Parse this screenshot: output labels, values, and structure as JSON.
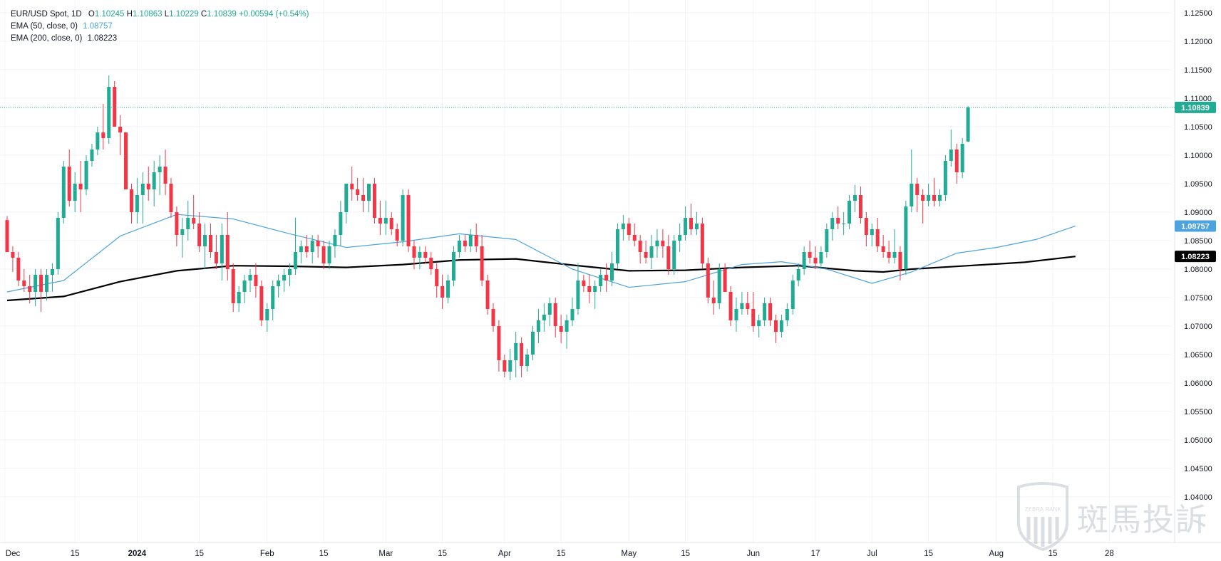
{
  "legend": {
    "symbol": "EUR/USD Spot, 1D",
    "o_label": "O",
    "o_val": "1.10245",
    "h_label": "H",
    "h_val": "1.10863",
    "l_label": "L",
    "l_val": "1.10229",
    "c_label": "C",
    "c_val": "1.10839",
    "change": "+0.00594 (+0.54%)",
    "ema50_label": "EMA (50, close, 0)",
    "ema50_val": "1.08757",
    "ema200_label": "EMA (200, close, 0)",
    "ema200_val": "1.08223"
  },
  "colors": {
    "up": "#22ab94",
    "down": "#f23645",
    "ema50": "#4ca3dd",
    "ema200": "#000000",
    "grid": "#f0f3fa",
    "axis_text": "#131722",
    "last_price_line": "#22ab94"
  },
  "watermark": {
    "brand": "ZEBRA RANK",
    "text": "斑馬投訴"
  },
  "chart_data": {
    "type": "candlestick",
    "title": "EUR/USD Spot, 1D",
    "ylim": [
      1.0365,
      1.1285
    ],
    "yticks": [
      "1.04000",
      "1.04500",
      "1.05000",
      "1.05500",
      "1.06000",
      "1.06500",
      "1.07000",
      "1.07500",
      "1.08000",
      "1.08500",
      "1.09000",
      "1.09500",
      "1.10000",
      "1.10500",
      "1.11000",
      "1.11500",
      "1.12000",
      "1.12500"
    ],
    "xlabels": [
      {
        "label": "Dec",
        "idx": -0.4
      },
      {
        "label": "15",
        "idx": 12
      },
      {
        "label": "2024",
        "idx": 23
      },
      {
        "label": "15",
        "idx": 34
      },
      {
        "label": "Feb",
        "idx": 46
      },
      {
        "label": "15",
        "idx": 56
      },
      {
        "label": "Mar",
        "idx": 67
      },
      {
        "label": "15",
        "idx": 77
      },
      {
        "label": "Apr",
        "idx": 88
      },
      {
        "label": "15",
        "idx": 98
      },
      {
        "label": "May",
        "idx": 110
      },
      {
        "label": "15",
        "idx": 120
      },
      {
        "label": "Jun",
        "idx": 132
      },
      {
        "label": "17",
        "idx": 143
      },
      {
        "label": "Jul",
        "idx": 153
      },
      {
        "label": "15",
        "idx": 163
      },
      {
        "label": "Aug",
        "idx": 175
      },
      {
        "label": "15",
        "idx": 185
      },
      {
        "label": "28",
        "idx": 195
      }
    ],
    "last_price": 1.10839,
    "ema50_last": 1.08757,
    "ema200_last": 1.08223,
    "ema50_points": [
      [
        0,
        1.076
      ],
      [
        10,
        1.078
      ],
      [
        20,
        1.0858
      ],
      [
        30,
        1.0896
      ],
      [
        40,
        1.0888
      ],
      [
        50,
        1.0862
      ],
      [
        60,
        1.0838
      ],
      [
        70,
        1.0848
      ],
      [
        80,
        1.0862
      ],
      [
        90,
        1.0852
      ],
      [
        100,
        1.08
      ],
      [
        110,
        1.0768
      ],
      [
        120,
        1.0778
      ],
      [
        130,
        1.0808
      ],
      [
        137,
        1.0813
      ],
      [
        145,
        1.08
      ],
      [
        153,
        1.0775
      ],
      [
        160,
        1.0795
      ],
      [
        168,
        1.0828
      ],
      [
        175,
        1.0838
      ],
      [
        182,
        1.0852
      ],
      [
        189,
        1.08757
      ]
    ],
    "ema200_points": [
      [
        0,
        1.0745
      ],
      [
        10,
        1.0752
      ],
      [
        20,
        1.0778
      ],
      [
        30,
        1.0797
      ],
      [
        40,
        1.0806
      ],
      [
        50,
        1.0805
      ],
      [
        60,
        1.0803
      ],
      [
        70,
        1.0808
      ],
      [
        80,
        1.0816
      ],
      [
        90,
        1.0818
      ],
      [
        100,
        1.0807
      ],
      [
        110,
        1.0797
      ],
      [
        120,
        1.0798
      ],
      [
        130,
        1.0803
      ],
      [
        140,
        1.0806
      ],
      [
        150,
        1.0797
      ],
      [
        155,
        1.0795
      ],
      [
        160,
        1.08
      ],
      [
        170,
        1.0806
      ],
      [
        180,
        1.0812
      ],
      [
        189,
        1.08223
      ]
    ],
    "candles": [
      [
        1.0886,
        1.0893,
        1.083,
        1.083
      ],
      [
        1.083,
        1.084,
        1.0795,
        1.082
      ],
      [
        1.082,
        1.083,
        1.077,
        1.078
      ],
      [
        1.078,
        1.08,
        1.076,
        1.077
      ],
      [
        1.077,
        1.079,
        1.074,
        1.076
      ],
      [
        1.076,
        1.08,
        1.0735,
        1.079
      ],
      [
        1.079,
        1.08,
        1.0725,
        1.076
      ],
      [
        1.076,
        1.08,
        1.0745,
        1.079
      ],
      [
        1.079,
        1.081,
        1.076,
        1.08
      ],
      [
        1.08,
        1.09,
        1.079,
        1.089
      ],
      [
        1.089,
        1.099,
        1.088,
        1.098
      ],
      [
        1.098,
        1.101,
        1.091,
        1.092
      ],
      [
        1.092,
        1.097,
        1.09,
        1.095
      ],
      [
        1.095,
        1.099,
        1.09,
        1.094
      ],
      [
        1.094,
        1.1,
        1.093,
        1.099
      ],
      [
        1.099,
        1.102,
        1.098,
        1.101
      ],
      [
        1.101,
        1.105,
        1.1,
        1.104
      ],
      [
        1.104,
        1.109,
        1.101,
        1.103
      ],
      [
        1.103,
        1.114,
        1.102,
        1.112
      ],
      [
        1.112,
        1.113,
        1.105,
        1.105
      ],
      [
        1.105,
        1.107,
        1.1,
        1.104
      ],
      [
        1.104,
        1.104,
        1.094,
        1.094
      ],
      [
        1.094,
        1.095,
        1.088,
        1.09
      ],
      [
        1.09,
        1.096,
        1.088,
        1.093
      ],
      [
        1.093,
        1.097,
        1.088,
        1.095
      ],
      [
        1.095,
        1.098,
        1.092,
        1.094
      ],
      [
        1.094,
        1.099,
        1.091,
        1.097
      ],
      [
        1.097,
        1.1,
        1.093,
        1.098
      ],
      [
        1.098,
        1.101,
        1.093,
        1.095
      ],
      [
        1.095,
        1.096,
        1.089,
        1.09
      ],
      [
        1.09,
        1.091,
        1.084,
        1.086
      ],
      [
        1.086,
        1.089,
        1.082,
        1.087
      ],
      [
        1.087,
        1.092,
        1.085,
        1.089
      ],
      [
        1.089,
        1.093,
        1.087,
        1.088
      ],
      [
        1.088,
        1.09,
        1.083,
        1.084
      ],
      [
        1.084,
        1.088,
        1.08,
        1.086
      ],
      [
        1.086,
        1.088,
        1.082,
        1.083
      ],
      [
        1.083,
        1.086,
        1.08,
        1.081
      ],
      [
        1.081,
        1.088,
        1.078,
        1.086
      ],
      [
        1.086,
        1.09,
        1.078,
        1.08
      ],
      [
        1.08,
        1.081,
        1.0725,
        1.074
      ],
      [
        1.074,
        1.077,
        1.0725,
        1.076
      ],
      [
        1.076,
        1.079,
        1.074,
        1.078
      ],
      [
        1.078,
        1.08,
        1.076,
        1.079
      ],
      [
        1.079,
        1.081,
        1.075,
        1.077
      ],
      [
        1.077,
        1.078,
        1.07,
        1.071
      ],
      [
        1.071,
        1.074,
        1.069,
        1.073
      ],
      [
        1.073,
        1.078,
        1.071,
        1.077
      ],
      [
        1.077,
        1.079,
        1.075,
        1.078
      ],
      [
        1.078,
        1.08,
        1.076,
        1.079
      ],
      [
        1.079,
        1.081,
        1.077,
        1.08
      ],
      [
        1.08,
        1.089,
        1.079,
        1.083
      ],
      [
        1.083,
        1.085,
        1.081,
        1.084
      ],
      [
        1.084,
        1.086,
        1.082,
        1.083
      ],
      [
        1.083,
        1.086,
        1.081,
        1.085
      ],
      [
        1.085,
        1.086,
        1.082,
        1.084
      ],
      [
        1.084,
        1.085,
        1.08,
        1.081
      ],
      [
        1.081,
        1.085,
        1.08,
        1.084
      ],
      [
        1.084,
        1.087,
        1.082,
        1.086
      ],
      [
        1.086,
        1.092,
        1.084,
        1.09
      ],
      [
        1.09,
        1.095,
        1.088,
        1.095
      ],
      [
        1.095,
        1.098,
        1.092,
        1.094
      ],
      [
        1.094,
        1.096,
        1.092,
        1.093
      ],
      [
        1.093,
        1.096,
        1.09,
        1.092
      ],
      [
        1.092,
        1.095,
        1.09,
        1.095
      ],
      [
        1.095,
        1.096,
        1.088,
        1.089
      ],
      [
        1.089,
        1.092,
        1.086,
        1.088
      ],
      [
        1.088,
        1.092,
        1.086,
        1.089
      ],
      [
        1.089,
        1.09,
        1.086,
        1.087
      ],
      [
        1.087,
        1.088,
        1.084,
        1.085
      ],
      [
        1.085,
        1.094,
        1.084,
        1.093
      ],
      [
        1.093,
        1.094,
        1.083,
        1.084
      ],
      [
        1.084,
        1.085,
        1.08,
        1.082
      ],
      [
        1.082,
        1.084,
        1.08,
        1.083
      ],
      [
        1.083,
        1.084,
        1.081,
        1.082
      ],
      [
        1.082,
        1.083,
        1.079,
        1.08
      ],
      [
        1.08,
        1.081,
        1.075,
        1.077
      ],
      [
        1.077,
        1.079,
        1.073,
        1.075
      ],
      [
        1.075,
        1.079,
        1.074,
        1.078
      ],
      [
        1.078,
        1.084,
        1.077,
        1.083
      ],
      [
        1.083,
        1.086,
        1.082,
        1.085
      ],
      [
        1.085,
        1.086,
        1.083,
        1.084
      ],
      [
        1.084,
        1.087,
        1.083,
        1.086
      ],
      [
        1.086,
        1.088,
        1.083,
        1.084
      ],
      [
        1.084,
        1.086,
        1.077,
        1.078
      ],
      [
        1.078,
        1.079,
        1.072,
        1.073
      ],
      [
        1.073,
        1.074,
        1.069,
        1.07
      ],
      [
        1.07,
        1.071,
        1.062,
        1.064
      ],
      [
        1.064,
        1.065,
        1.061,
        1.062
      ],
      [
        1.062,
        1.066,
        1.0605,
        1.064
      ],
      [
        1.064,
        1.069,
        1.061,
        1.067
      ],
      [
        1.067,
        1.068,
        1.061,
        1.063
      ],
      [
        1.063,
        1.066,
        1.062,
        1.065
      ],
      [
        1.065,
        1.07,
        1.064,
        1.069
      ],
      [
        1.069,
        1.073,
        1.067,
        1.071
      ],
      [
        1.071,
        1.074,
        1.069,
        1.072
      ],
      [
        1.072,
        1.075,
        1.07,
        1.074
      ],
      [
        1.074,
        1.075,
        1.068,
        1.07
      ],
      [
        1.07,
        1.072,
        1.067,
        1.069
      ],
      [
        1.069,
        1.072,
        1.066,
        1.071
      ],
      [
        1.071,
        1.075,
        1.07,
        1.073
      ],
      [
        1.073,
        1.081,
        1.072,
        1.078
      ],
      [
        1.078,
        1.079,
        1.076,
        1.077
      ],
      [
        1.077,
        1.079,
        1.074,
        1.076
      ],
      [
        1.076,
        1.078,
        1.073,
        1.077
      ],
      [
        1.077,
        1.08,
        1.076,
        1.079
      ],
      [
        1.079,
        1.081,
        1.076,
        1.078
      ],
      [
        1.078,
        1.083,
        1.077,
        1.081
      ],
      [
        1.081,
        1.088,
        1.08,
        1.087
      ],
      [
        1.087,
        1.0895,
        1.085,
        1.088
      ],
      [
        1.088,
        1.089,
        1.085,
        1.086
      ],
      [
        1.086,
        1.088,
        1.084,
        1.085
      ],
      [
        1.085,
        1.086,
        1.081,
        1.083
      ],
      [
        1.083,
        1.085,
        1.081,
        1.082
      ],
      [
        1.082,
        1.086,
        1.08,
        1.084
      ],
      [
        1.084,
        1.087,
        1.082,
        1.085
      ],
      [
        1.085,
        1.087,
        1.082,
        1.084
      ],
      [
        1.084,
        1.086,
        1.079,
        1.08
      ],
      [
        1.08,
        1.086,
        1.079,
        1.085
      ],
      [
        1.085,
        1.088,
        1.083,
        1.086
      ],
      [
        1.086,
        1.091,
        1.085,
        1.089
      ],
      [
        1.089,
        1.0915,
        1.086,
        1.087
      ],
      [
        1.087,
        1.09,
        1.086,
        1.088
      ],
      [
        1.088,
        1.089,
        1.08,
        1.081
      ],
      [
        1.081,
        1.082,
        1.074,
        1.075
      ],
      [
        1.075,
        1.078,
        1.072,
        1.074
      ],
      [
        1.074,
        1.081,
        1.073,
        1.08
      ],
      [
        1.08,
        1.081,
        1.076,
        1.076
      ],
      [
        1.076,
        1.077,
        1.07,
        1.071
      ],
      [
        1.071,
        1.075,
        1.069,
        1.073
      ],
      [
        1.073,
        1.076,
        1.072,
        1.074
      ],
      [
        1.074,
        1.076,
        1.072,
        1.073
      ],
      [
        1.073,
        1.076,
        1.069,
        1.07
      ],
      [
        1.07,
        1.072,
        1.068,
        1.071
      ],
      [
        1.071,
        1.075,
        1.07,
        1.074
      ],
      [
        1.074,
        1.075,
        1.07,
        1.071
      ],
      [
        1.071,
        1.072,
        1.067,
        1.069
      ],
      [
        1.069,
        1.072,
        1.068,
        1.071
      ],
      [
        1.071,
        1.074,
        1.07,
        1.073
      ],
      [
        1.073,
        1.079,
        1.072,
        1.078
      ],
      [
        1.078,
        1.081,
        1.077,
        1.08
      ],
      [
        1.08,
        1.084,
        1.079,
        1.083
      ],
      [
        1.083,
        1.085,
        1.081,
        1.082
      ],
      [
        1.082,
        1.084,
        1.08,
        1.081
      ],
      [
        1.081,
        1.084,
        1.08,
        1.083
      ],
      [
        1.083,
        1.088,
        1.082,
        1.087
      ],
      [
        1.087,
        1.09,
        1.085,
        1.089
      ],
      [
        1.089,
        1.091,
        1.087,
        1.088
      ],
      [
        1.088,
        1.09,
        1.086,
        1.088
      ],
      [
        1.088,
        1.093,
        1.087,
        1.092
      ],
      [
        1.092,
        1.0948,
        1.09,
        1.093
      ],
      [
        1.093,
        1.0945,
        1.088,
        1.089
      ],
      [
        1.089,
        1.09,
        1.084,
        1.086
      ],
      [
        1.086,
        1.088,
        1.084,
        1.087
      ],
      [
        1.087,
        1.089,
        1.083,
        1.084
      ],
      [
        1.084,
        1.086,
        1.082,
        1.083
      ],
      [
        1.083,
        1.085,
        1.081,
        1.082
      ],
      [
        1.082,
        1.087,
        1.081,
        1.083
      ],
      [
        1.083,
        1.084,
        1.078,
        1.08
      ],
      [
        1.08,
        1.092,
        1.079,
        1.091
      ],
      [
        1.091,
        1.101,
        1.09,
        1.095
      ],
      [
        1.095,
        1.096,
        1.09,
        1.093
      ],
      [
        1.093,
        1.094,
        1.088,
        1.092
      ],
      [
        1.092,
        1.095,
        1.091,
        1.093
      ],
      [
        1.093,
        1.096,
        1.091,
        1.092
      ],
      [
        1.092,
        1.094,
        1.091,
        1.093
      ],
      [
        1.093,
        1.1,
        1.092,
        1.099
      ],
      [
        1.099,
        1.1045,
        1.098,
        1.101
      ],
      [
        1.101,
        1.102,
        1.095,
        1.097
      ],
      [
        1.097,
        1.103,
        1.096,
        1.102
      ],
      [
        1.1024,
        1.1086,
        1.1023,
        1.1084
      ]
    ]
  }
}
